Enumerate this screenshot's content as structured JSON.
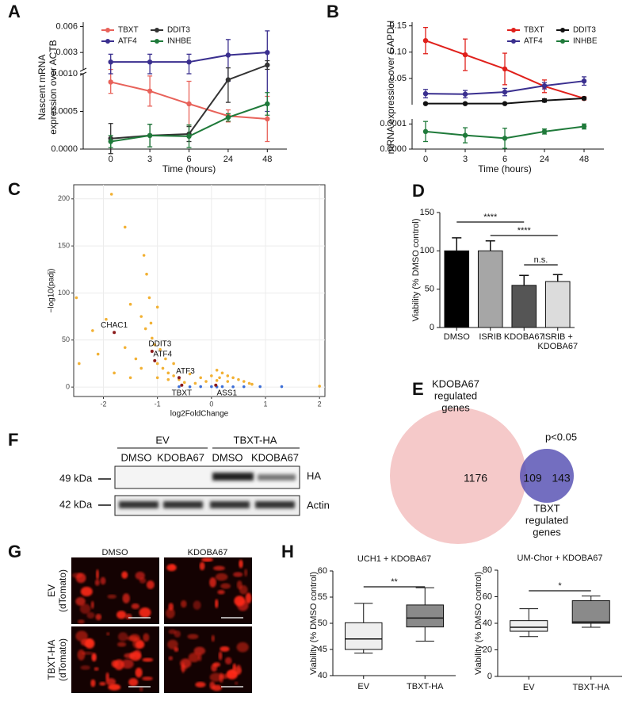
{
  "panel_labels": [
    "A",
    "B",
    "C",
    "D",
    "E",
    "F",
    "G",
    "H"
  ],
  "chart_data": [
    {
      "type": "line",
      "categories": [
        "0",
        "3",
        "6",
        "24",
        "48"
      ],
      "xlabel": "Time (hours)",
      "ylabel": [
        "Nascent mRNA",
        "expression over ACTB"
      ],
      "ylim": [
        0,
        0.0065
      ],
      "y_break": 0.001,
      "yticks": [
        {
          "value": 0,
          "label": "0.0000"
        },
        0.0005,
        {
          "value": 0.001,
          "label": "0.0010"
        },
        0.003,
        0.006
      ],
      "legend": "top",
      "series": [
        {
          "name": "TBXT",
          "color": "#e8625a",
          "values": [
            0.00089,
            0.00077,
            0.0006,
            0.00044,
            0.0004
          ],
          "errors": [
            0.00015,
            0.0002,
            0.0003,
            8e-05,
            0.0003
          ]
        },
        {
          "name": "ATF4",
          "color": "#3a2f8f",
          "values": [
            0.0019,
            0.0019,
            0.0019,
            0.0027,
            0.003
          ],
          "errors": [
            0.0009,
            0.0009,
            0.0009,
            0.0018,
            0.0025
          ]
        },
        {
          "name": "DDIT3",
          "color": "#333333",
          "values": [
            0.00014,
            0.00018,
            0.0002,
            0.00092,
            0.00155
          ],
          "errors": [
            0.0002,
            0.00015,
            0.0001,
            0.0003,
            0.0005
          ]
        },
        {
          "name": "INHBE",
          "color": "#1f7a3a",
          "values": [
            0.0001,
            0.00018,
            0.00017,
            0.00042,
            0.0006
          ],
          "errors": [
            8e-05,
            0.00015,
            0.00015,
            5e-05,
            0.00015
          ]
        }
      ]
    },
    {
      "type": "line",
      "categories": [
        "0",
        "3",
        "6",
        "24",
        "48"
      ],
      "xlabel": "Time (hours)",
      "ylabel": [
        "mRNA expression over GAPDH"
      ],
      "ylim": [
        0,
        0.157
      ],
      "yticks": [
        0.05,
        {
          "value": 0.1,
          "label": "0.10"
        },
        0.15
      ],
      "y2lim": [
        0,
        0.00012
      ],
      "y2ticks": [
        {
          "value": 0,
          "label": "0.0000"
        },
        0.0001
      ],
      "legend": "top right",
      "series": [
        {
          "name": "TBXT",
          "color": "#e0201b",
          "values": [
            0.122,
            0.095,
            0.068,
            0.035,
            0.012
          ],
          "errors": [
            0.025,
            0.03,
            0.03,
            0.012,
            0.003
          ]
        },
        {
          "name": "ATF4",
          "color": "#3a2f8f",
          "values": [
            0.021,
            0.02,
            0.024,
            0.036,
            0.045
          ],
          "errors": [
            0.008,
            0.007,
            0.007,
            0.006,
            0.008
          ]
        },
        {
          "name": "DDIT3",
          "color": "#111111",
          "values": [
            0.002,
            0.002,
            0.002,
            0.008,
            0.012
          ],
          "errors": [
            0.001,
            0.001,
            0.001,
            0.003,
            0.002
          ]
        },
        {
          "name": "INHBE",
          "color": "#1f7a3a",
          "axis": "y2",
          "values": [
            7e-05,
            5.5e-05,
            4.3e-05,
            7e-05,
            9e-05
          ],
          "errors": [
            4e-05,
            3e-05,
            4e-05,
            1e-05,
            1e-05
          ]
        }
      ]
    },
    {
      "type": "scatter",
      "xlabel": "log2FoldChange",
      "ylabel": "−log10(padj)",
      "xlim": [
        -2.55,
        2.1
      ],
      "ylim": [
        -10,
        215
      ],
      "xticks": [
        -2,
        -1,
        0,
        1,
        2
      ],
      "yticks": [
        0,
        50,
        100,
        150,
        200
      ],
      "grid": true,
      "series": [
        {
          "color": "#f2b134",
          "x": [
            -1.85,
            -1.6,
            -2.5,
            -1.5,
            -1.3,
            -1.22,
            -2.2,
            -1.95,
            -1.12,
            -1.15,
            -1.2,
            -1.25,
            -1.1,
            -1.05,
            -0.95,
            -1.0,
            -0.9,
            -0.8,
            -0.7,
            -0.6,
            -2.1,
            -2.45,
            -1.6,
            -1.4,
            -1.0,
            -0.5,
            -0.3,
            0.1,
            0.2,
            0.3,
            0.4,
            0.5,
            0.6,
            0.7,
            0.75,
            0.3,
            0.1,
            -0.2,
            -0.4,
            -0.7,
            -0.85,
            2.0,
            -1.8,
            -1.5,
            -1.3,
            -1.0,
            -0.8,
            0.0,
            0.15,
            -0.1
          ],
          "values": [
            205,
            170,
            95,
            88,
            75,
            62,
            60,
            72,
            68,
            95,
            120,
            140,
            52,
            45,
            40,
            25,
            20,
            15,
            12,
            8,
            35,
            25,
            42,
            30,
            85,
            5,
            4,
            18,
            15,
            12,
            10,
            8,
            6,
            4,
            3,
            6,
            7,
            10,
            14,
            25,
            30,
            1,
            15,
            10,
            20,
            10,
            8,
            12,
            10,
            6
          ]
        },
        {
          "color": "#3d6fd6",
          "x": [
            -0.6,
            -0.4,
            -0.2,
            0,
            0.2,
            0.4,
            0.6,
            0.9,
            1.3,
            0.1
          ],
          "values": [
            0.4,
            0.3,
            0.5,
            0.5,
            0.5,
            0.3,
            0.4,
            0.5,
            0.5,
            0.2
          ]
        }
      ],
      "annotations": [
        {
          "text": "CHAC1",
          "x": -1.8,
          "y": 58
        },
        {
          "text": "DDIT3",
          "x": -1.1,
          "y": 38
        },
        {
          "text": "ATF4",
          "x": -1.05,
          "y": 28
        },
        {
          "text": "ATF3",
          "x": -0.6,
          "y": 10
        },
        {
          "text": "TBXT",
          "x": -0.55,
          "y": 2
        },
        {
          "text": "ASS1",
          "x": 0.08,
          "y": 2
        }
      ]
    },
    {
      "type": "bar",
      "categories": [
        "DMSO",
        "ISRIB",
        "KDOBA67",
        "ISRIB + KDOBA67"
      ],
      "ylabel": "Viability (% DMSO control)",
      "values": [
        100,
        100,
        55,
        60
      ],
      "errors": [
        17,
        13,
        13,
        9
      ],
      "colors": [
        "#000000",
        "#a6a6a6",
        "#555555",
        "#dcdcdc"
      ],
      "ylim": [
        0,
        150
      ],
      "yticks": [
        0,
        50,
        100,
        150
      ],
      "significance": [
        {
          "pair": [
            "DMSO",
            "KDOBA67"
          ],
          "label": "****"
        },
        {
          "pair": [
            "ISRIB",
            "ISRIB + KDOBA67"
          ],
          "label": "****"
        },
        {
          "pair": [
            "KDOBA67",
            "ISRIB + KDOBA67"
          ],
          "label": "n.s."
        }
      ]
    },
    {
      "type": "box",
      "title": "UCH1 + KDOBA67",
      "categories": [
        "EV",
        "TBXT-HA"
      ],
      "ylabel": "Viability (% DMSO control)",
      "values": [
        [
          44.3,
          45,
          47,
          50.1,
          53.8
        ],
        [
          46.6,
          49.3,
          51,
          53.5,
          56.8
        ]
      ],
      "colors": [
        "#eeeeee",
        "#8a8a8a"
      ],
      "ylim": [
        40,
        60
      ],
      "yticks": [
        40,
        45,
        50,
        55,
        60
      ],
      "significance": [
        {
          "pair": [
            "EV",
            "TBXT-HA"
          ],
          "label": "**"
        }
      ]
    },
    {
      "type": "box",
      "title": "UM-Chor + KDOBA67",
      "categories": [
        "EV",
        "TBXT-HA"
      ],
      "ylabel": "Viability (% DMSO control)",
      "values": [
        [
          30,
          34,
          37,
          42,
          51
        ],
        [
          37,
          40,
          41,
          57,
          60.5
        ]
      ],
      "colors": [
        "#eeeeee",
        "#8a8a8a"
      ],
      "ylim": [
        0,
        80
      ],
      "yticks": [
        0,
        20,
        40,
        60,
        80
      ],
      "significance": [
        {
          "pair": [
            "EV",
            "TBXT-HA"
          ],
          "label": "*"
        }
      ]
    }
  ],
  "venn": {
    "left_label": [
      "KDOBA67",
      "regulated",
      "genes"
    ],
    "right_label": [
      "TBXT",
      "regulated",
      "genes"
    ],
    "left_only": 1176,
    "overlap": 109,
    "right_only": 143,
    "p_value": "p<0.05"
  },
  "western_blot": {
    "groups": [
      "EV",
      "TBXT-HA"
    ],
    "lanes": [
      "DMSO",
      "KDOBA67",
      "DMSO",
      "KDOBA67"
    ],
    "markers": [
      "49 kDa",
      "42 kDa"
    ],
    "bands": [
      "HA",
      "Actin"
    ]
  },
  "microscopy": {
    "columns": [
      "DMSO",
      "KDOBA67"
    ],
    "rows": [
      [
        "EV",
        "(dTomato)"
      ],
      [
        "TBXT-HA",
        "(dTomato)"
      ]
    ]
  }
}
